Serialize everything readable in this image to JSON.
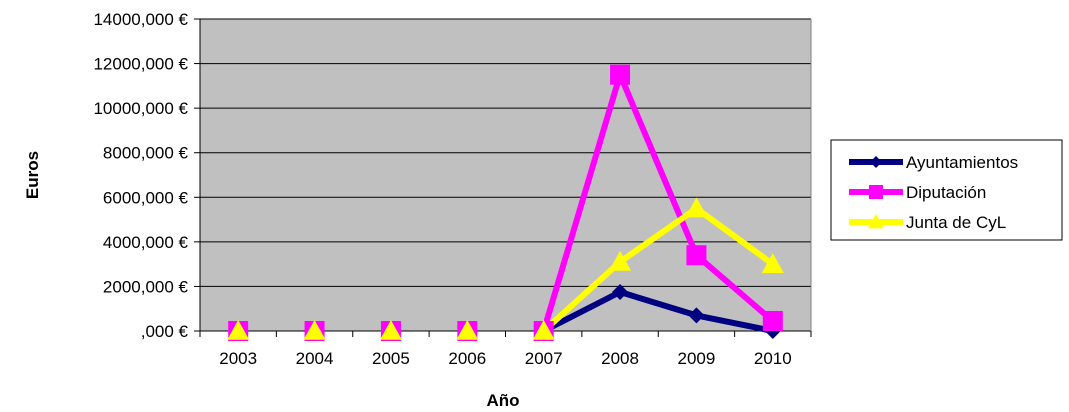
{
  "chart_data": {
    "type": "line",
    "categories": [
      "2003",
      "2004",
      "2005",
      "2006",
      "2007",
      "2008",
      "2009",
      "2010"
    ],
    "ylim": [
      0,
      14000
    ],
    "yticks": [
      0,
      2000,
      4000,
      6000,
      8000,
      10000,
      12000,
      14000
    ],
    "ytick_labels": [
      ",000 €",
      "2000,000 €",
      "4000,000 €",
      "6000,000 €",
      "8000,000 €",
      "10000,000 €",
      "12000,000 €",
      "14000,000 €"
    ],
    "xlabel": "Año",
    "ylabel": "Euros",
    "grid": true,
    "legend_position": "right",
    "plot_background": "#c0c0c0",
    "series": [
      {
        "name": "Ayuntamientos",
        "color": "#000080",
        "marker": "diamond",
        "values": [
          0,
          0,
          0,
          0,
          0,
          1750,
          700,
          0
        ]
      },
      {
        "name": "Diputación",
        "color": "#ff00ff",
        "marker": "square",
        "values": [
          0,
          0,
          0,
          0,
          0,
          11500,
          3400,
          450
        ]
      },
      {
        "name": "Junta de CyL",
        "color": "#ffff00",
        "marker": "triangle",
        "values": [
          0,
          0,
          0,
          0,
          0,
          3100,
          5500,
          3000
        ]
      }
    ]
  }
}
